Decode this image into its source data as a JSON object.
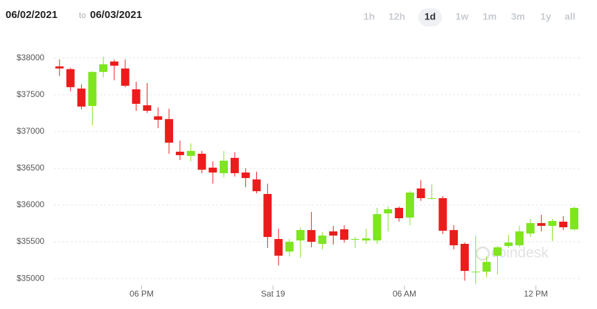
{
  "header": {
    "from": "06/02/2021",
    "to": "to",
    "until": "06/03/2021",
    "ranges": [
      "1h",
      "12h",
      "1d",
      "1w",
      "1m",
      "3m",
      "1y",
      "all"
    ],
    "active_range": "1d"
  },
  "watermark": "coindesk",
  "chart_data": {
    "type": "candlestick",
    "x": [
      0,
      1,
      2,
      3,
      4,
      5,
      6,
      7,
      8,
      9,
      10,
      11,
      12,
      13,
      14,
      15,
      16,
      17,
      18,
      19,
      20,
      21,
      22,
      23,
      24,
      25,
      26,
      27,
      28,
      29,
      30,
      31,
      32,
      33,
      34,
      35,
      36,
      37,
      38,
      39,
      40,
      41,
      42,
      43,
      44,
      45,
      46,
      47
    ],
    "open": [
      37887,
      37849,
      37585,
      37349,
      37811,
      37953,
      37858,
      37575,
      37358,
      37208,
      37170,
      36726,
      36670,
      36698,
      36509,
      36434,
      36642,
      36443,
      36349,
      36151,
      35538,
      35368,
      35519,
      35660,
      35472,
      35642,
      35670,
      35528,
      35519,
      35519,
      35887,
      35962,
      35830,
      36226,
      36085,
      36094,
      35660,
      35472,
      35085,
      35094,
      35311,
      35443,
      35453,
      35613,
      35755,
      35717,
      35774,
      35670
    ],
    "high": [
      37981,
      37868,
      37642,
      37821,
      38019,
      37981,
      37981,
      37679,
      37660,
      37330,
      37311,
      36877,
      36840,
      36736,
      36594,
      36736,
      36717,
      36500,
      36453,
      36292,
      35679,
      35538,
      35698,
      35906,
      35632,
      35717,
      35726,
      35566,
      35679,
      35962,
      35981,
      35981,
      36189,
      36340,
      36283,
      36123,
      35726,
      35491,
      35585,
      35302,
      35443,
      35594,
      35717,
      35811,
      35868,
      35811,
      35849,
      35981
    ],
    "low": [
      37755,
      37547,
      37302,
      37085,
      37736,
      37698,
      37604,
      37283,
      37255,
      37047,
      36698,
      36613,
      36594,
      36434,
      36292,
      36377,
      36387,
      36245,
      36160,
      35415,
      35179,
      35302,
      35283,
      35425,
      35396,
      35462,
      35491,
      35415,
      35472,
      35472,
      35642,
      35774,
      35726,
      36057,
      36075,
      35604,
      35396,
      34972,
      34925,
      35019,
      35057,
      35425,
      35425,
      35566,
      35642,
      35509,
      35660,
      35651
    ],
    "close": [
      37858,
      37604,
      37340,
      37811,
      37915,
      37896,
      37623,
      37377,
      37283,
      37160,
      36849,
      36679,
      36736,
      36481,
      36443,
      36604,
      36434,
      36368,
      36189,
      35566,
      35311,
      35500,
      35660,
      35500,
      35585,
      35585,
      35528,
      35538,
      35547,
      35877,
      35943,
      35821,
      36170,
      36094,
      36094,
      35651,
      35453,
      35104,
      35094,
      35226,
      35425,
      35491,
      35642,
      35755,
      35717,
      35783,
      35698,
      35962
    ],
    "up_color": "#7ee51e",
    "down_color": "#ec1c1c",
    "xlim": [
      -0.5,
      47.5
    ],
    "xticks": [
      {
        "value": 7.5,
        "label": "06 PM"
      },
      {
        "value": 19.5,
        "label": "Sat 19"
      },
      {
        "value": 31.5,
        "label": "06 AM"
      },
      {
        "value": 43.5,
        "label": "12 PM"
      }
    ],
    "ylim": [
      34850,
      38130
    ],
    "yticks": [
      {
        "value": 35000,
        "label": "$35000"
      },
      {
        "value": 35500,
        "label": "$35500"
      },
      {
        "value": 36000,
        "label": "$36000"
      },
      {
        "value": 36500,
        "label": "$36500"
      },
      {
        "value": 37000,
        "label": "$37000"
      },
      {
        "value": 37500,
        "label": "$37500"
      },
      {
        "value": 38000,
        "label": "$38000"
      }
    ],
    "grid": true
  }
}
